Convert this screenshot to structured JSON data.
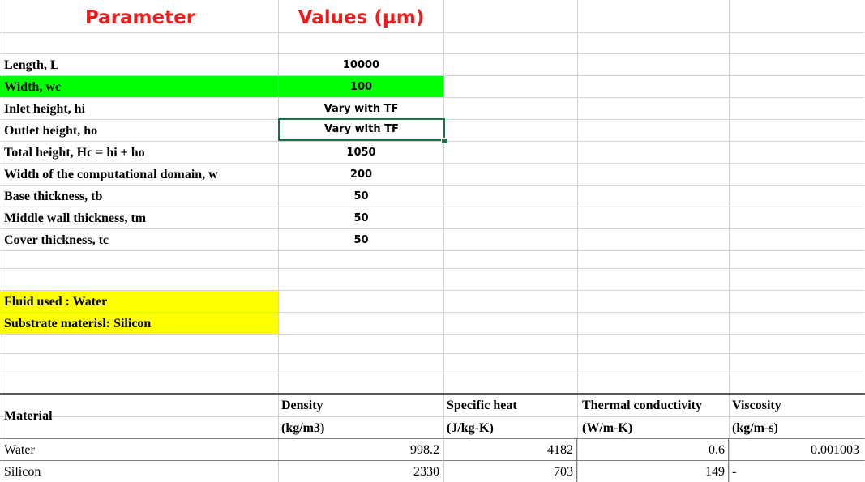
{
  "sheet": {
    "header": {
      "parameter": "Parameter",
      "values": "Values (µm)"
    },
    "params": [
      {
        "label": "Length, L",
        "value": "10000"
      },
      {
        "label": "Width, wc",
        "value": "100"
      },
      {
        "label": "Inlet height, hi",
        "value": "Vary with TF"
      },
      {
        "label": "Outlet height, ho",
        "value": "Vary with TF"
      },
      {
        "label": "Total height, Hc = hi + ho",
        "value": "1050"
      },
      {
        "label": "Width of the computational domain, w",
        "value": "200"
      },
      {
        "label": "Base thickness, tb",
        "value": "50"
      },
      {
        "label": "Middle wall thickness, tm",
        "value": "50"
      },
      {
        "label": "Cover thickness, tc",
        "value": "50"
      }
    ],
    "notes": {
      "fluid": "Fluid used : Water",
      "substrate": "Substrate materisl: Silicon"
    },
    "table": {
      "material_header": "Material",
      "headers": [
        {
          "name": "Density",
          "unit": "(kg/m3)"
        },
        {
          "name": "Specific heat",
          "unit": "(J/kg-K)"
        },
        {
          "name": "Thermal conductivity",
          "unit": "(W/m-K)"
        },
        {
          "name": "Viscosity",
          "unit": "(kg/m-s)"
        }
      ],
      "rows": [
        {
          "material": "Water",
          "density": "998.2",
          "specific_heat": "4182",
          "conductivity": "0.6",
          "viscosity": "0.001003"
        },
        {
          "material": "Silicon",
          "density": "2330",
          "specific_heat": "703",
          "conductivity": "149",
          "viscosity": "-"
        }
      ]
    },
    "colors": {
      "header_text": "#ee1c1c",
      "highlight_green": "#00ff00",
      "highlight_yellow": "#ffff00",
      "selection": "#1e7145"
    }
  }
}
